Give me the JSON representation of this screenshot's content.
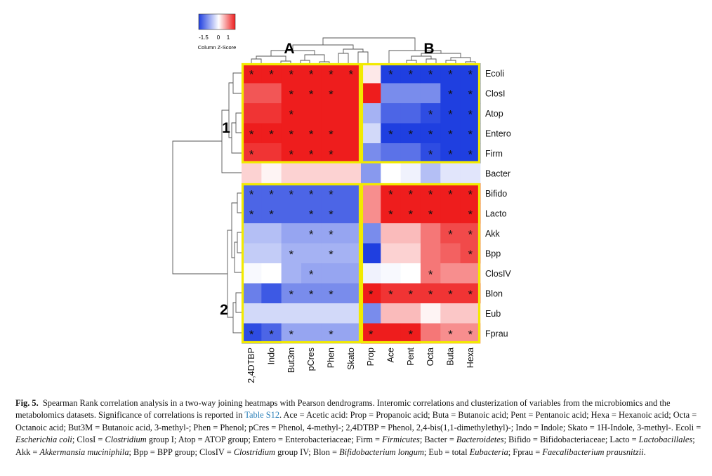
{
  "colorkey": {
    "title": "Column Z-Score",
    "ticks": [
      "-1.5",
      "0",
      "1"
    ],
    "low_color": "#1f3fe0",
    "mid_color": "#ffffff",
    "high_color": "#ee1d1d"
  },
  "groups": {
    "col_a": "A",
    "col_b": "B",
    "row_1": "1",
    "row_2": "2"
  },
  "caption": {
    "label": "Fig. 5.",
    "p1": "Spearman Rank correlation analysis in a two-way joining heatmaps with Pearson dendrograms. Interomic correlations and clusterization of variables from the microbiomics and the metabolomics datasets. Significance of correlations is reported in ",
    "link": "Table S12",
    "p2": ". Ace = Acetic acid: Prop = Propanoic acid; Buta = Butanoic acid; Pent = Pentanoic acid; Hexa = Hexanoic acid; Octa = Octanoic acid; But3M = Butanoic acid, 3-methyl-; Phen = Phenol; pCres = Phenol, 4-methyl-; 2,4DTBP = Phenol, 2,4-bis(1,1-dimethylethyl)-; Indo = Indole; Skato = 1H-Indole, 3-methyl-. Ecoli = ",
    "t_ecoli": "Escherichia coli",
    "s1": "; ClosI = ",
    "t_clos": "Clostridium",
    "s2": " group I; Atop = ATOP group; Entero = Enterobacteriaceae; Firm = ",
    "t_firm": "Firmicutes",
    "s3": "; Bacter = ",
    "t_bact": "Bacteroidetes",
    "s4": "; Bifido = Bifidobacteriaceae; Lacto = ",
    "t_lacto": "Lactobacillales",
    "s5": "; Akk = ",
    "t_akk": "Akkermansia muciniphila",
    "s6": "; Bpp = BPP group; ClosIV = ",
    "t_clos4": "Clostridium",
    "s7": " group IV; Blon = ",
    "t_blon": "Bifidobacterium longum",
    "s8": "; Eub = total ",
    "t_eub": "Eubacteria",
    "s9": "; Fprau = ",
    "t_fprau": "Faecalibacterium prausnitzii",
    "s10": "."
  },
  "chart_data": {
    "type": "heatmap",
    "colorscale_label": "Column Z-Score",
    "colorscale_range": [
      -1.5,
      1
    ],
    "columns": [
      "2,4DTBP",
      "Indo",
      "But3m",
      "pCres",
      "Phen",
      "Skato",
      "Prop",
      "Ace",
      "Pent",
      "Octa",
      "Buta",
      "Hexa"
    ],
    "rows": [
      "Ecoli",
      "ClosI",
      "Atop",
      "Entero",
      "Firm",
      "Bacter",
      "Bifido",
      "Lacto",
      "Akk",
      "Bpp",
      "ClosIV",
      "Blon",
      "Eub",
      "Fprau"
    ],
    "values": [
      [
        1.2,
        1.2,
        1.2,
        1.2,
        1.2,
        1.2,
        0.1,
        -1.6,
        -1.6,
        -1.6,
        -1.6,
        -1.6
      ],
      [
        0.75,
        0.75,
        1.0,
        1.0,
        1.0,
        1.0,
        1.0,
        -0.9,
        -0.9,
        -0.9,
        -1.6,
        -1.6
      ],
      [
        0.9,
        0.9,
        1.0,
        1.0,
        1.0,
        1.0,
        -0.6,
        -1.2,
        -1.2,
        -1.4,
        -1.5,
        -1.5
      ],
      [
        1.3,
        1.2,
        1.2,
        1.2,
        1.2,
        1.0,
        -0.3,
        -1.7,
        -1.6,
        -1.5,
        -1.5,
        -1.5
      ],
      [
        0.9,
        0.9,
        1.0,
        1.0,
        1.0,
        1.0,
        -0.9,
        -1.1,
        -1.1,
        -1.4,
        -1.5,
        -1.5
      ],
      [
        0.2,
        0.05,
        0.2,
        0.2,
        0.2,
        0.2,
        -0.8,
        0.0,
        -0.1,
        -0.5,
        -0.2,
        -0.2
      ],
      [
        -1.2,
        -1.2,
        -1.2,
        -1.2,
        -1.2,
        -1.2,
        0.5,
        1.0,
        1.0,
        1.0,
        1.0,
        1.0
      ],
      [
        -1.2,
        -1.2,
        -1.2,
        -1.2,
        -1.2,
        -1.2,
        0.5,
        1.0,
        1.0,
        1.0,
        1.0,
        1.0
      ],
      [
        -0.5,
        -0.5,
        -0.7,
        -0.7,
        -0.7,
        -0.7,
        -0.9,
        0.3,
        0.3,
        0.6,
        0.8,
        0.8
      ],
      [
        -0.4,
        -0.4,
        -0.6,
        -0.6,
        -0.6,
        -0.6,
        -1.6,
        0.2,
        0.2,
        0.6,
        0.7,
        0.8
      ],
      [
        -0.05,
        0.0,
        -0.6,
        -0.7,
        -0.7,
        -0.7,
        -0.1,
        -0.05,
        0.0,
        0.6,
        0.5,
        0.5
      ],
      [
        -1.0,
        -1.3,
        -0.9,
        -0.9,
        -0.9,
        -0.9,
        1.1,
        0.9,
        0.9,
        0.9,
        0.9,
        0.9
      ],
      [
        -0.3,
        -0.3,
        -0.3,
        -0.3,
        -0.3,
        -0.3,
        -0.9,
        0.3,
        0.3,
        0.05,
        0.25,
        0.25
      ],
      [
        -1.4,
        -1.2,
        -0.7,
        -0.7,
        -0.7,
        -0.7,
        1.5,
        1.0,
        1.0,
        0.6,
        0.5,
        0.5
      ]
    ],
    "significant_label": "*",
    "significant": [
      [
        1,
        1,
        1,
        1,
        1,
        1,
        0,
        1,
        1,
        1,
        1,
        1
      ],
      [
        0,
        0,
        1,
        1,
        1,
        0,
        0,
        0,
        0,
        0,
        1,
        1
      ],
      [
        0,
        0,
        1,
        0,
        0,
        0,
        0,
        0,
        0,
        1,
        1,
        1
      ],
      [
        1,
        1,
        1,
        1,
        1,
        0,
        0,
        1,
        1,
        1,
        1,
        1
      ],
      [
        1,
        0,
        1,
        1,
        1,
        0,
        0,
        0,
        0,
        1,
        1,
        1
      ],
      [
        0,
        0,
        0,
        0,
        0,
        0,
        0,
        0,
        0,
        0,
        0,
        0
      ],
      [
        1,
        1,
        1,
        1,
        1,
        0,
        0,
        1,
        1,
        1,
        1,
        1
      ],
      [
        1,
        1,
        0,
        1,
        1,
        0,
        0,
        1,
        1,
        1,
        0,
        1
      ],
      [
        0,
        0,
        0,
        1,
        1,
        0,
        0,
        0,
        0,
        0,
        1,
        1
      ],
      [
        0,
        0,
        1,
        0,
        1,
        0,
        0,
        0,
        0,
        0,
        0,
        1
      ],
      [
        0,
        0,
        0,
        1,
        0,
        0,
        0,
        0,
        0,
        1,
        0,
        0
      ],
      [
        0,
        0,
        1,
        1,
        1,
        0,
        1,
        1,
        1,
        1,
        1,
        1
      ],
      [
        0,
        0,
        0,
        0,
        0,
        0,
        0,
        0,
        0,
        0,
        0,
        0
      ],
      [
        1,
        1,
        1,
        0,
        1,
        0,
        1,
        0,
        1,
        0,
        1,
        1
      ]
    ],
    "column_clusters": [
      {
        "label": "A",
        "columns": [
          "2,4DTBP",
          "Indo",
          "But3m",
          "pCres",
          "Phen",
          "Skato"
        ]
      },
      {
        "label": "B",
        "columns": [
          "Prop",
          "Ace",
          "Pent",
          "Octa",
          "Buta",
          "Hexa"
        ]
      }
    ],
    "row_clusters": [
      {
        "label": "1",
        "rows": [
          "Ecoli",
          "ClosI",
          "Atop",
          "Entero",
          "Firm"
        ]
      },
      {
        "label": "2",
        "rows": [
          "Bifido",
          "Lacto",
          "Akk",
          "Bpp",
          "ClosIV",
          "Blon",
          "Eub",
          "Fprau"
        ]
      }
    ],
    "highlight_color": "#f2ea00"
  }
}
